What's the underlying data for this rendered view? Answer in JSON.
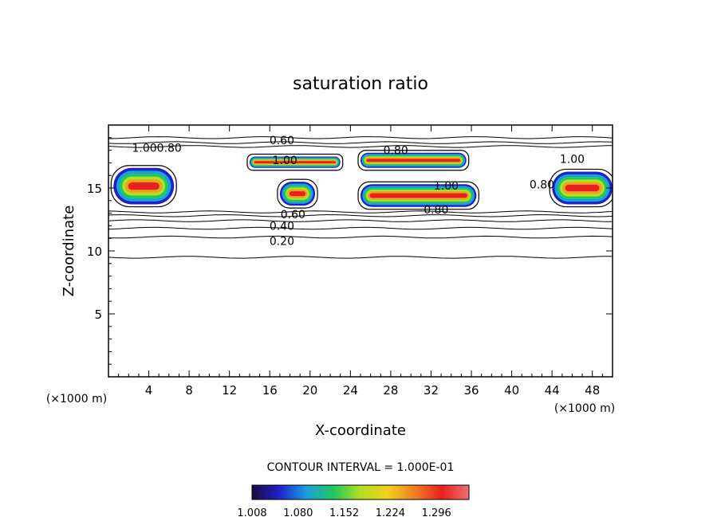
{
  "chart_data": {
    "type": "contour",
    "title": "saturation ratio",
    "xlabel": "X-coordinate",
    "ylabel": "Z-coordinate",
    "x_unit": "(×1000 m)",
    "z_unit": "(×1000 m)",
    "xlim": [
      0,
      50
    ],
    "ylim": [
      0,
      20
    ],
    "x_ticks": [
      4,
      8,
      12,
      16,
      20,
      24,
      28,
      32,
      36,
      40,
      44,
      48
    ],
    "y_ticks": [
      5,
      10,
      15
    ],
    "contour_interval_text": "CONTOUR INTERVAL = 1.000E-01",
    "colorbar": {
      "ticks": [
        "1.008",
        "1.080",
        "1.152",
        "1.224",
        "1.296"
      ],
      "colors": [
        "#1a0a3c",
        "#2020c8",
        "#1aa0e0",
        "#20c860",
        "#b0e020",
        "#f0d020",
        "#f08020",
        "#e82020",
        "#f07070"
      ]
    },
    "contour_labels": [
      {
        "text": "0.60",
        "x": 17.2,
        "z": 18.8
      },
      {
        "text": "1.000.80",
        "x": 4.8,
        "z": 18.2
      },
      {
        "text": "0.80",
        "x": 28.5,
        "z": 18.0
      },
      {
        "text": "1.00",
        "x": 46.0,
        "z": 17.3
      },
      {
        "text": "1.00",
        "x": 17.5,
        "z": 17.2
      },
      {
        "text": "0.80",
        "x": 43.0,
        "z": 15.3
      },
      {
        "text": "1.00",
        "x": 33.5,
        "z": 15.2
      },
      {
        "text": "0.60",
        "x": 18.3,
        "z": 12.9
      },
      {
        "text": "0.80",
        "x": 32.5,
        "z": 13.3
      },
      {
        "text": "0.40",
        "x": 17.2,
        "z": 12.0
      },
      {
        "text": "0.20",
        "x": 17.2,
        "z": 10.8
      }
    ],
    "supersaturated_regions": [
      {
        "x": [
          0.5,
          6.5
        ],
        "z": [
          13.7,
          16.6
        ]
      },
      {
        "x": [
          17.0,
          20.5
        ],
        "z": [
          13.6,
          15.5
        ]
      },
      {
        "x": [
          25.0,
          36.5
        ],
        "z": [
          13.5,
          15.3
        ]
      },
      {
        "x": [
          25.0,
          35.5
        ],
        "z": [
          16.6,
          17.8
        ]
      },
      {
        "x": [
          44.0,
          50.0
        ],
        "z": [
          13.7,
          16.3
        ]
      },
      {
        "x": [
          14.0,
          23.0
        ],
        "z": [
          16.6,
          17.5
        ]
      }
    ],
    "grid": false
  }
}
